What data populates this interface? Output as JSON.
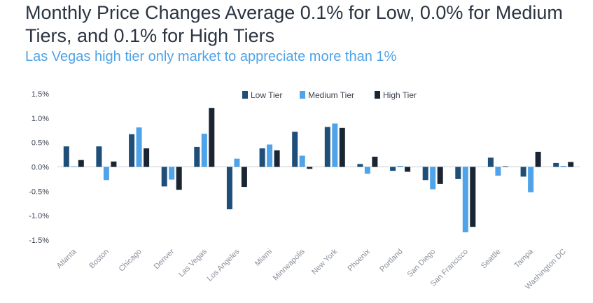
{
  "title": "Monthly Price Changes Average 0.1% for Low, 0.0% for Medium Tiers, and 0.1% for High Tiers",
  "subtitle": "Las Vegas high tier only market to appreciate more than 1%",
  "colors": {
    "low": "#1f4e79",
    "medium": "#4fa3e8",
    "high": "#1a2533",
    "title": "#2b3441",
    "subtitle": "#4fa3e8",
    "zero_line": "#c9cdd3"
  },
  "chart_data": {
    "type": "bar",
    "categories": [
      "Atlanta",
      "Boston",
      "Chicago",
      "Denver",
      "Las Vegas",
      "Los Angeles",
      "Miami",
      "Minneapolis",
      "New York",
      "Phoenix",
      "Portland",
      "San Diego",
      "San Francisco",
      "Seattle",
      "Tampa",
      "Washington DC"
    ],
    "series": [
      {
        "name": "Low Tier",
        "color": "#1f4e79",
        "values": [
          0.42,
          0.42,
          0.67,
          -0.4,
          0.41,
          -0.87,
          0.38,
          0.72,
          0.82,
          0.06,
          -0.08,
          -0.27,
          -0.25,
          0.19,
          -0.2,
          0.08
        ]
      },
      {
        "name": "Medium Tier",
        "color": "#4fa3e8",
        "values": [
          0.0,
          -0.27,
          0.81,
          -0.26,
          0.68,
          0.17,
          0.46,
          0.23,
          0.89,
          -0.14,
          0.01,
          -0.46,
          -1.34,
          -0.18,
          -0.52,
          0.01
        ]
      },
      {
        "name": "High Tier",
        "color": "#1a2533",
        "values": [
          0.14,
          0.11,
          0.38,
          -0.47,
          1.21,
          -0.41,
          0.34,
          -0.04,
          0.8,
          0.21,
          -0.1,
          -0.35,
          -1.23,
          0.0,
          0.31,
          0.1
        ]
      }
    ],
    "y_ticks": [
      "1.5%",
      "1.0%",
      "0.5%",
      "0.0%",
      "-0.5%",
      "-1.0%",
      "-1.5%"
    ],
    "ylim": [
      -1.5,
      1.5
    ],
    "legend_position": "top-center",
    "grid": false
  }
}
